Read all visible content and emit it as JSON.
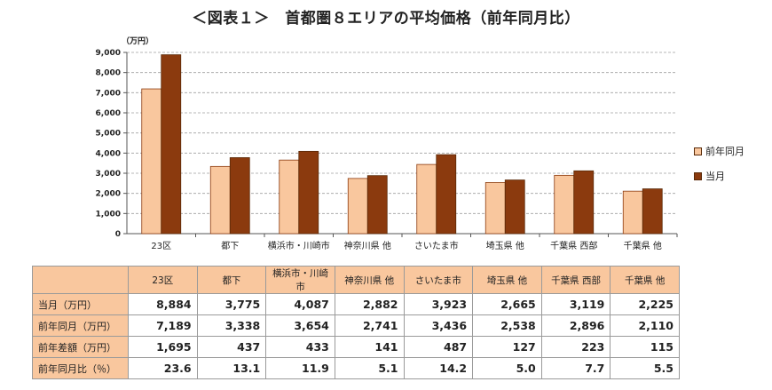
{
  "title": "＜図表１＞　首都圏８エリアの平均価格（前年同月比）",
  "colors": {
    "prev": "#f9c79e",
    "curr": "#8b3a0e",
    "grid": "#a0a0a0",
    "header": "#f9c79e"
  },
  "chart_data": {
    "type": "bar",
    "unit_label": "（万円）",
    "categories": [
      "23区",
      "都下",
      "横浜市・川崎市",
      "神奈川県 他",
      "さいたま市",
      "埼玉県 他",
      "千葉県 西部",
      "千葉県 他"
    ],
    "series": [
      {
        "name": "前年同月",
        "values": [
          7189,
          3338,
          3654,
          2741,
          3436,
          2538,
          2896,
          2110
        ]
      },
      {
        "name": "当月",
        "values": [
          8884,
          3775,
          4087,
          2882,
          3923,
          2665,
          3119,
          2225
        ]
      }
    ],
    "yticks": [
      "0",
      "1,000",
      "2,000",
      "3,000",
      "4,000",
      "5,000",
      "6,000",
      "7,000",
      "8,000",
      "9,000"
    ],
    "ylim": [
      0,
      9000
    ],
    "grid": true,
    "legend_position": "right"
  },
  "table": {
    "headers": [
      "",
      "23区",
      "都下",
      "横浜市・川崎市",
      "神奈川県 他",
      "さいたま市",
      "埼玉県 他",
      "千葉県 西部",
      "千葉県 他"
    ],
    "rows": [
      {
        "label": "当月（万円）",
        "values": [
          "8,884",
          "3,775",
          "4,087",
          "2,882",
          "3,923",
          "2,665",
          "3,119",
          "2,225"
        ]
      },
      {
        "label": "前年同月（万円）",
        "values": [
          "7,189",
          "3,338",
          "3,654",
          "2,741",
          "3,436",
          "2,538",
          "2,896",
          "2,110"
        ]
      },
      {
        "label": "前年差額（万円）",
        "values": [
          "1,695",
          "437",
          "433",
          "141",
          "487",
          "127",
          "223",
          "115"
        ]
      },
      {
        "label": "前年同月比（％）",
        "values": [
          "23.6",
          "13.1",
          "11.9",
          "5.1",
          "14.2",
          "5.0",
          "7.7",
          "5.5"
        ]
      }
    ]
  }
}
